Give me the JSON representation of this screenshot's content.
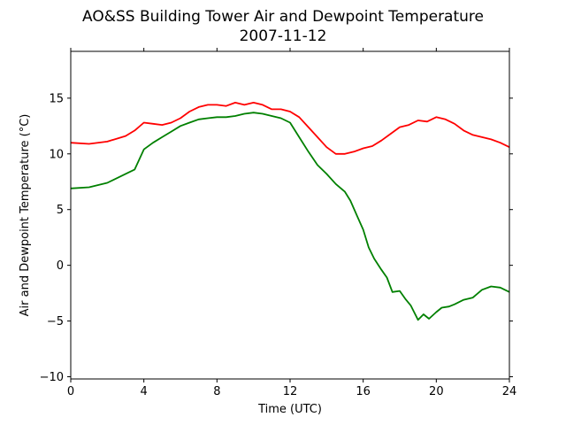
{
  "chart_data": {
    "type": "line",
    "title": "AO&SS Building Tower Air and Dewpoint Temperature",
    "subtitle": "2007-11-12",
    "xlabel": "Time (UTC)",
    "ylabel": "Air and Dewpoint Temperature (°C)",
    "xlim": [
      0,
      24
    ],
    "ylim": [
      -10.2,
      19.2
    ],
    "xticks": [
      0,
      4,
      8,
      12,
      16,
      20,
      24
    ],
    "yticks": [
      -10,
      -5,
      0,
      5,
      10,
      15
    ],
    "grid": false,
    "legend": "none",
    "series": [
      {
        "color": "#ff0000",
        "x": [
          0,
          1,
          2,
          3,
          3.5,
          4,
          4.5,
          5,
          5.5,
          6,
          6.5,
          7,
          7.5,
          8,
          8.5,
          9,
          9.5,
          10,
          10.5,
          11,
          11.5,
          12,
          12.5,
          13,
          13.5,
          14,
          14.5,
          15,
          15.5,
          16,
          16.5,
          17,
          17.5,
          18,
          18.5,
          19,
          19.5,
          20,
          20.5,
          21,
          21.5,
          22,
          22.5,
          23,
          23.5,
          24
        ],
        "y": [
          11.0,
          10.9,
          11.1,
          11.6,
          12.1,
          12.8,
          12.7,
          12.6,
          12.8,
          13.2,
          13.8,
          14.2,
          14.4,
          14.4,
          14.3,
          14.6,
          14.4,
          14.6,
          14.4,
          14.0,
          14.0,
          13.8,
          13.3,
          12.4,
          11.5,
          10.6,
          10.0,
          10.0,
          10.2,
          10.5,
          10.7,
          11.2,
          11.8,
          12.4,
          12.6,
          13.0,
          12.9,
          13.3,
          13.1,
          12.7,
          12.1,
          11.7,
          11.5,
          11.3,
          11.0,
          10.6
        ]
      },
      {
        "color": "#008000",
        "x": [
          0,
          1,
          2,
          3,
          3.5,
          4,
          4.5,
          5,
          5.5,
          6,
          6.5,
          7,
          7.5,
          8,
          8.5,
          9,
          9.5,
          10,
          10.5,
          11,
          11.5,
          12,
          12.5,
          13,
          13.5,
          14,
          14.5,
          15,
          15.3,
          15.7,
          16,
          16.3,
          16.6,
          17,
          17.3,
          17.6,
          18,
          18.3,
          18.6,
          19,
          19.3,
          19.6,
          20,
          20.3,
          20.7,
          21,
          21.5,
          22,
          22.5,
          23,
          23.5,
          24
        ],
        "y": [
          6.9,
          7.0,
          7.4,
          8.2,
          8.6,
          10.4,
          11.0,
          11.5,
          12.0,
          12.5,
          12.8,
          13.1,
          13.2,
          13.3,
          13.3,
          13.4,
          13.6,
          13.7,
          13.6,
          13.4,
          13.2,
          12.8,
          11.5,
          10.2,
          9.0,
          8.2,
          7.3,
          6.6,
          5.8,
          4.3,
          3.2,
          1.6,
          0.6,
          -0.4,
          -1.1,
          -2.4,
          -2.3,
          -3.0,
          -3.6,
          -4.9,
          -4.4,
          -4.8,
          -4.2,
          -3.8,
          -3.7,
          -3.5,
          -3.1,
          -2.9,
          -2.2,
          -1.9,
          -2.0,
          -2.4
        ]
      }
    ]
  }
}
